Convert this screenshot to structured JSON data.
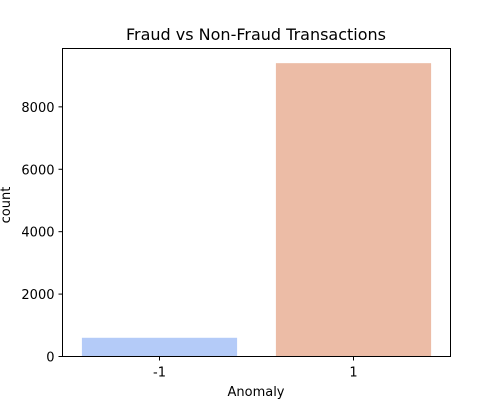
{
  "chart_data": {
    "type": "bar",
    "title": "Fraud vs Non-Fraud Transactions",
    "xlabel": "Anomaly",
    "ylabel": "count",
    "categories": [
      "-1",
      "1"
    ],
    "values": [
      600,
      9400
    ],
    "colors": [
      "#b4cbf8",
      "#ecbca6"
    ],
    "ylim": [
      0,
      9870
    ],
    "yticks": [
      0,
      2000,
      4000,
      6000,
      8000
    ],
    "grid": false,
    "legend": "none"
  }
}
